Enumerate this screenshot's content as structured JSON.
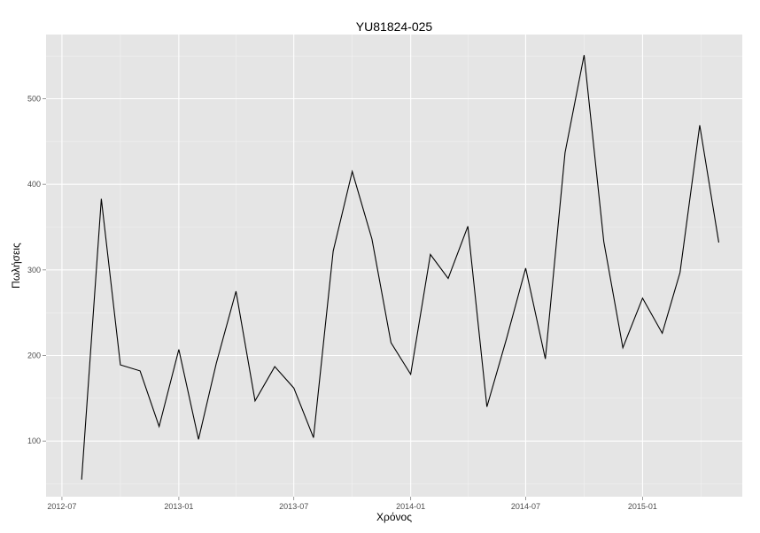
{
  "chart_data": {
    "type": "line",
    "title": "YU81824-025",
    "xlabel": "Χρόνος",
    "ylabel": "Πωλήσεις",
    "x_ticks": [
      "2012-07",
      "2013-01",
      "2013-07",
      "2014-01",
      "2014-07",
      "2015-01"
    ],
    "y_ticks": [
      100,
      200,
      300,
      400,
      500
    ],
    "xlim": [
      "2012-06-06",
      "2015-06-07"
    ],
    "ylim": [
      35,
      575
    ],
    "grid": true,
    "legend": "none",
    "colors": {
      "panel_background": "#e5e5e5",
      "grid_major": "#ffffff",
      "grid_minor": "#f2f2f2",
      "line": "#000000"
    },
    "series": [
      {
        "x": [
          "2012-08-01",
          "2012-09-01",
          "2012-10-01",
          "2012-11-01",
          "2012-12-01",
          "2013-01-01",
          "2013-02-01",
          "2013-03-01",
          "2013-04-01",
          "2013-05-01",
          "2013-06-01",
          "2013-07-01",
          "2013-08-01",
          "2013-09-01",
          "2013-10-01",
          "2013-11-01",
          "2013-12-01",
          "2014-01-01",
          "2014-02-01",
          "2014-03-01",
          "2014-04-01",
          "2014-05-01",
          "2014-06-01",
          "2014-07-01",
          "2014-08-01",
          "2014-09-01",
          "2014-10-01",
          "2014-11-01",
          "2014-12-01",
          "2015-01-01",
          "2015-02-01",
          "2015-03-01",
          "2015-04-01",
          "2015-05-01"
        ],
        "values": [
          55,
          383,
          189,
          182,
          117,
          207,
          102,
          191,
          275,
          147,
          187,
          162,
          104,
          322,
          415,
          336,
          215,
          178,
          318,
          290,
          351,
          140,
          220,
          302,
          196,
          437,
          551,
          333,
          209,
          267,
          226,
          297,
          469,
          332
        ]
      }
    ]
  }
}
